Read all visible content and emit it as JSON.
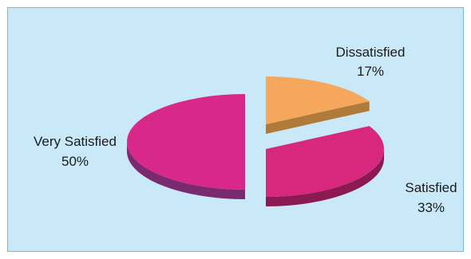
{
  "chart_data": {
    "type": "pie",
    "title": "",
    "legend": "none",
    "slices": [
      {
        "label": "Dissatisfied",
        "value": 17,
        "value_label": "17%",
        "color": "#f5a85c",
        "side_color": "#b07a3a"
      },
      {
        "label": "Satisfied",
        "value": 33,
        "value_label": "33%",
        "color": "#d8287e",
        "side_color": "#8c1a52"
      },
      {
        "label": "Very Satisfied",
        "value": 50,
        "value_label": "50%",
        "color": "#d8288a",
        "side_color": "#7a2a6e"
      }
    ]
  }
}
